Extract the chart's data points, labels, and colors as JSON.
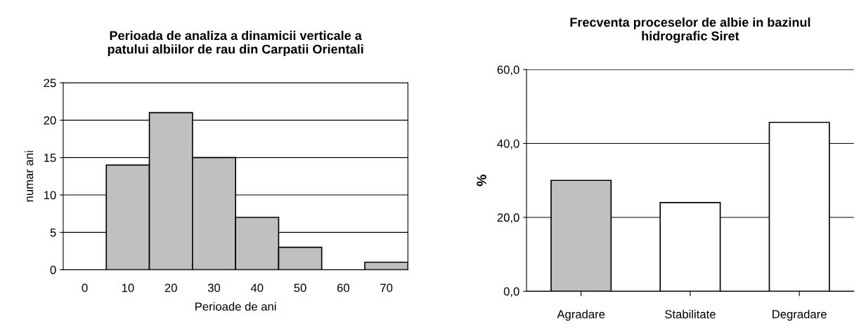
{
  "chart_data": [
    {
      "type": "bar",
      "title": "Perioada de analiza a dinamicii verticale a\npatului albiilor de rau din Carpatii Orientali",
      "xlabel": "Perioade de ani",
      "ylabel": "numar ani",
      "categories": [
        "0",
        "10",
        "20",
        "30",
        "40",
        "50",
        "60",
        "70"
      ],
      "values": [
        0,
        14,
        21,
        15,
        7,
        3,
        0,
        1
      ],
      "color": "#c0c0c0",
      "ylim": [
        0,
        25
      ],
      "yticks": [
        0,
        5,
        10,
        15,
        20,
        25
      ],
      "grid": "y"
    },
    {
      "type": "bar",
      "title": "Frecventa proceselor de albie in bazinul\nhidrografic Siret",
      "ylabel": "%",
      "categories": [
        "Agradare",
        "Stabilitate",
        "Degradare"
      ],
      "values": [
        30.0,
        24.0,
        45.7
      ],
      "colors": [
        "#c0c0c0",
        "#ffffff",
        "#ffffff"
      ],
      "ylim": [
        0,
        60
      ],
      "yticks": [
        {
          "value": 0,
          "label": "0,0"
        },
        {
          "value": 20,
          "label": "20,0"
        },
        {
          "value": 40,
          "label": "40,0"
        },
        {
          "value": 60,
          "label": "60,0"
        }
      ],
      "grid": "y"
    }
  ]
}
